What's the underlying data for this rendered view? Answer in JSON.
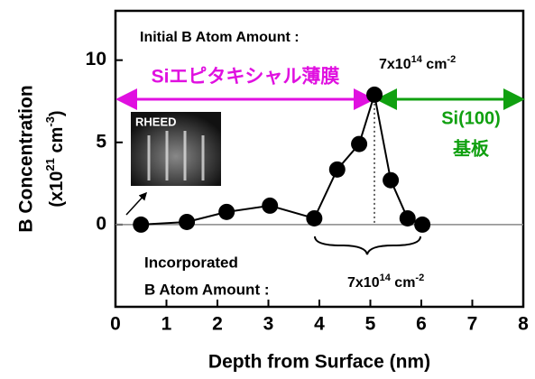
{
  "chart_data": {
    "type": "line",
    "x_label": "Depth from Surface (nm)",
    "y_label": "B Concentration",
    "y_label_unit": {
      "prefix": "(x10",
      "exponent": "21",
      "unit": " cm",
      "unit_exponent": "-3",
      "suffix": ")"
    },
    "x": [
      0.5,
      1.4,
      2.18,
      3.03,
      3.9,
      4.35,
      4.78,
      5.08,
      5.4,
      5.73,
      6.02
    ],
    "series": [
      {
        "color": "#000000",
        "values": [
          0,
          0.16,
          0.77,
          1.15,
          0.38,
          3.35,
          4.9,
          7.9,
          2.7,
          0.38,
          0
        ]
      }
    ],
    "xlim": [
      0,
      8
    ],
    "xticks": [
      0,
      1,
      2,
      3,
      4,
      5,
      6,
      7,
      8
    ],
    "ylim": [
      -5,
      13
    ],
    "yticks": [
      0,
      5,
      10
    ],
    "grid": false,
    "annotations": {
      "initial_label": "Initial B Atom Amount :",
      "initial_amount": {
        "mantissa": "7x10",
        "exponent": "14",
        "unit": " cm",
        "unit_exponent": "-2"
      },
      "epi_label": "Siエピタキシャル薄膜",
      "substrate_label_1": "Si(100)",
      "substrate_label_2": "基板",
      "inset_label": "RHEED",
      "incorporated_label_1": "Incorporated",
      "incorporated_label_2": "B Atom Amount :",
      "incorporated_amount": {
        "mantissa": "7x10",
        "exponent": "14",
        "unit": " cm",
        "unit_exponent": "-2"
      }
    }
  }
}
